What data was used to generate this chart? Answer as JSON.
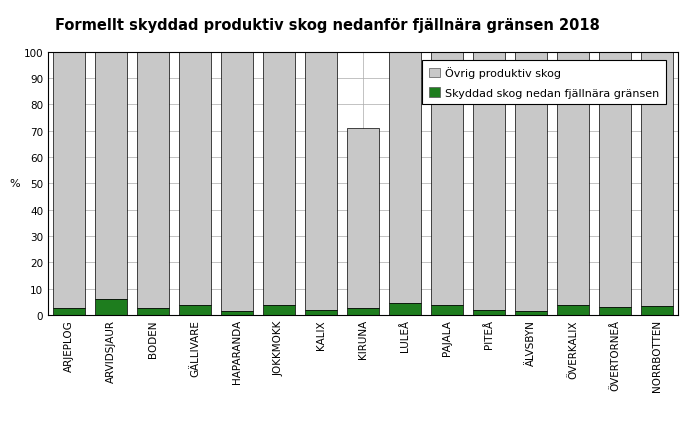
{
  "title": "Formellt skyddad produktiv skog nedanför fjällnära gränsen 2018",
  "categories": [
    "ARJEPLOG",
    "ARVIDSJAUR",
    "BODEN",
    "GÄLLIVARE",
    "HAPARANDA",
    "JOKKMOKK",
    "KALIX",
    "KIRUNA",
    "LULEÅ",
    "PAJALA",
    "PITEÅ",
    "ÄLVSBYN",
    "ÖVERKALIX",
    "ÖVERTORNEÅ",
    "NORRBOTTEN"
  ],
  "green_values": [
    2.5,
    6.0,
    2.5,
    4.0,
    1.5,
    4.0,
    2.0,
    2.5,
    4.5,
    4.0,
    2.0,
    1.5,
    4.0,
    3.0,
    3.5
  ],
  "total_values": [
    100,
    100,
    100,
    100,
    100,
    100,
    100,
    71,
    100,
    100,
    100,
    100,
    100,
    100,
    100
  ],
  "green_color": "#1e7d1e",
  "gray_color": "#c8c8c8",
  "ylabel": "%",
  "ylim": [
    0,
    100
  ],
  "yticks": [
    0,
    10,
    20,
    30,
    40,
    50,
    60,
    70,
    80,
    90,
    100
  ],
  "legend_gray": "Övrig produktiv skog",
  "legend_green": "Skyddad skog nedan fjällnära gränsen",
  "bar_edge_color": "#000000",
  "bar_width": 0.75,
  "title_fontsize": 10.5,
  "axis_fontsize": 8,
  "tick_fontsize": 7.5,
  "legend_fontsize": 8,
  "background_color": "#ffffff"
}
